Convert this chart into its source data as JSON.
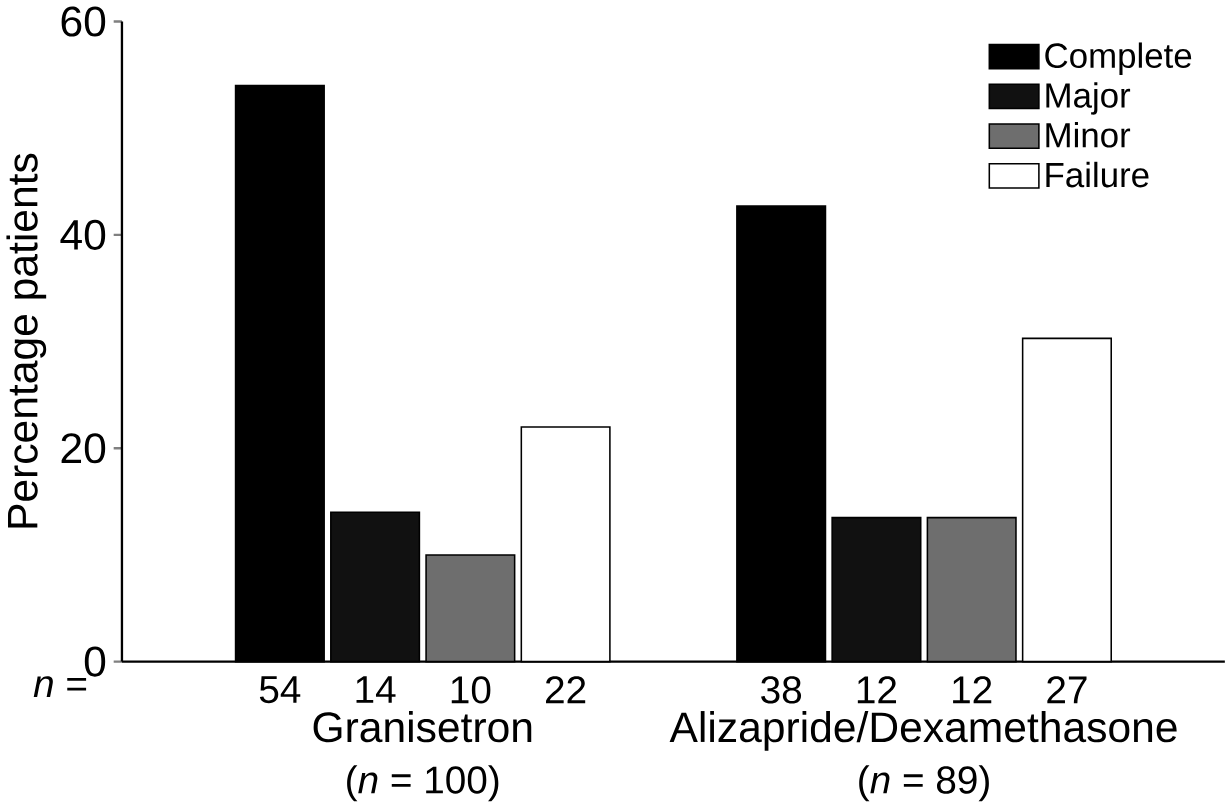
{
  "chart_data": {
    "type": "bar",
    "ylabel": "Percentage patients",
    "categories": [
      "Granisetron",
      "Alizapride/Dexamethasone"
    ],
    "series": [
      {
        "name": "Complete",
        "color": "#000000",
        "values": [
          54,
          42.7
        ]
      },
      {
        "name": "Major",
        "color": "#111111",
        "values": [
          14,
          13.5
        ]
      },
      {
        "name": "Minor",
        "color": "#6e6e6e",
        "values": [
          10,
          13.5
        ]
      },
      {
        "name": "Failure",
        "color": "#ffffff",
        "values": [
          22,
          30.3
        ]
      }
    ],
    "annotations": [
      "*n* =",
      "54",
      "14",
      "10",
      "22",
      "38",
      "12",
      "12",
      "27",
      "(*n* = 100)",
      "(*n* = 89)"
    ],
    "ylim": [
      0,
      60
    ],
    "yticks": [
      0,
      20,
      40,
      60
    ],
    "grid": false,
    "legend": "top right"
  }
}
